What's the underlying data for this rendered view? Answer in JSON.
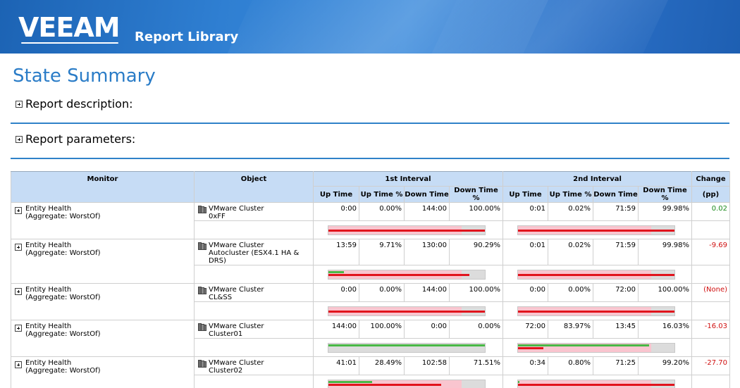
{
  "header": {
    "logo_text": "VEEAM",
    "app_title": "Report Library"
  },
  "page_title": "State Summary",
  "sections": {
    "description": "Report description:",
    "parameters": "Report parameters:"
  },
  "table": {
    "headers": {
      "monitor": "Monitor",
      "object": "Object",
      "interval1": "1st Interval",
      "interval2": "2nd Interval",
      "change": "Change",
      "change_unit": "(pp)",
      "up_time": "Up Time",
      "up_time_pct": "Up Time %",
      "down_time": "Down Time",
      "down_time_pct": "Down Time %"
    },
    "rows": [
      {
        "monitor_line1": "Entity Health",
        "monitor_line2": "(Aggregate: WorstOf)",
        "object_line1": "VMware Cluster",
        "object_line2": "0xFF",
        "i1": {
          "up": "0:00",
          "up_pct": "0.00%",
          "down": "144:00",
          "down_pct": "100.00%"
        },
        "i2": {
          "up": "0:01",
          "up_pct": "0.02%",
          "down": "71:59",
          "down_pct": "99.98%"
        },
        "change": "0.02",
        "change_sign": "pos",
        "bar1": {
          "pink": 0.85,
          "red": 1.0,
          "green": 0.0
        },
        "bar2": {
          "pink": 0.85,
          "red": 1.0,
          "green": 0.0
        }
      },
      {
        "monitor_line1": "Entity Health",
        "monitor_line2": "(Aggregate: WorstOf)",
        "object_line1": "VMware Cluster",
        "object_line2": "Autocluster (ESX4.1 HA & DRS)",
        "i1": {
          "up": "13:59",
          "up_pct": "9.71%",
          "down": "130:00",
          "down_pct": "90.29%"
        },
        "i2": {
          "up": "0:01",
          "up_pct": "0.02%",
          "down": "71:59",
          "down_pct": "99.98%"
        },
        "change": "-9.69",
        "change_sign": "neg",
        "bar1": {
          "pink": 0.85,
          "red": 0.9,
          "green": 0.1
        },
        "bar2": {
          "pink": 0.85,
          "red": 1.0,
          "green": 0.0
        }
      },
      {
        "monitor_line1": "Entity Health",
        "monitor_line2": "(Aggregate: WorstOf)",
        "object_line1": "VMware Cluster",
        "object_line2": "CL&SS",
        "i1": {
          "up": "0:00",
          "up_pct": "0.00%",
          "down": "144:00",
          "down_pct": "100.00%"
        },
        "i2": {
          "up": "0:00",
          "up_pct": "0.00%",
          "down": "72:00",
          "down_pct": "100.00%"
        },
        "change": "(None)",
        "change_sign": "neg",
        "bar1": {
          "pink": 0.85,
          "red": 1.0,
          "green": 0.0
        },
        "bar2": {
          "pink": 0.85,
          "red": 1.0,
          "green": 0.0
        }
      },
      {
        "monitor_line1": "Entity Health",
        "monitor_line2": "(Aggregate: WorstOf)",
        "object_line1": "VMware Cluster",
        "object_line2": "Cluster01",
        "i1": {
          "up": "144:00",
          "up_pct": "100.00%",
          "down": "0:00",
          "down_pct": "0.00%"
        },
        "i2": {
          "up": "72:00",
          "up_pct": "83.97%",
          "down": "13:45",
          "down_pct": "16.03%"
        },
        "change": "-16.03",
        "change_sign": "neg",
        "bar1": {
          "pink": 0.0,
          "red": 0.0,
          "green": 1.0
        },
        "bar2": {
          "pink": 0.85,
          "red": 0.16,
          "green": 0.84
        }
      },
      {
        "monitor_line1": "Entity Health",
        "monitor_line2": "(Aggregate: WorstOf)",
        "object_line1": "VMware Cluster",
        "object_line2": "Cluster02",
        "i1": {
          "up": "41:01",
          "up_pct": "28.49%",
          "down": "102:58",
          "down_pct": "71.51%"
        },
        "i2": {
          "up": "0:34",
          "up_pct": "0.80%",
          "down": "71:25",
          "down_pct": "99.20%"
        },
        "change": "-27.70",
        "change_sign": "neg",
        "bar1": {
          "pink": 0.85,
          "red": 0.72,
          "green": 0.28
        },
        "bar2": {
          "pink": 0.85,
          "red": 1.0,
          "green": 0.01
        }
      }
    ]
  }
}
